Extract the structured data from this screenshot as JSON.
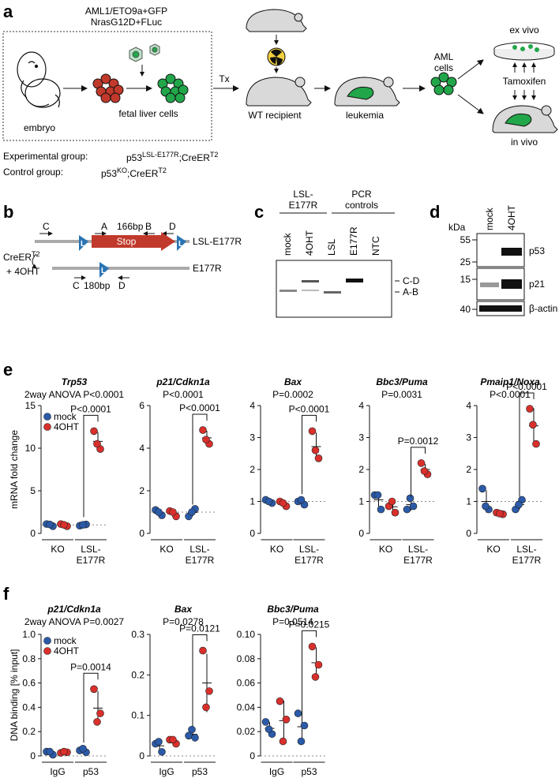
{
  "panel_labels": {
    "a": "a",
    "b": "b",
    "c": "c",
    "d": "d",
    "e": "e",
    "f": "f"
  },
  "panel_a": {
    "construct_line1": "AML1/ETO9a+GFP",
    "construct_line2": "NrasG12D+FLuc",
    "embryo": "embryo",
    "fetal_liver": "fetal liver cells",
    "tx": "Tx",
    "wt_recipient": "WT recipient",
    "leukemia": "leukemia",
    "aml_cells_1": "AML",
    "aml_cells_2": "cells",
    "ex_vivo": "ex vivo",
    "tamoxifen": "Tamoxifen",
    "in_vivo": "in vivo",
    "exp_group_label": "Experimental group:",
    "exp_group_gen_base": "p53",
    "exp_group_gen_sup": "LSL-E177R",
    "exp_group_gen_mid": ";CreER",
    "exp_group_gen_sup2": "T2",
    "ctrl_group_label": "Control group:",
    "ctrl_group_gen_base": "p53",
    "ctrl_group_gen_sup": "KO",
    "ctrl_group_gen_mid": ";CreER",
    "ctrl_group_gen_sup2": "T2"
  },
  "panel_b": {
    "C": "C",
    "A": "A",
    "bp166": "166bp",
    "B": "B",
    "D": "D",
    "L": "L",
    "stop": "Stop",
    "lsl_allele": "LSL-E177R",
    "e177r_allele": "E177R",
    "cre_base": "CreER",
    "cre_sup": "T2",
    "ohtx": "+ 4OHT",
    "C2": "C",
    "bp180": "180bp",
    "D2": "D"
  },
  "panel_c": {
    "group1_line1": "LSL-",
    "group1_line2": "E177R",
    "group2_line1": "PCR",
    "group2_line2": "controls",
    "lanes": [
      "mock",
      "4OHT",
      "LSL",
      "E177R",
      "NTC"
    ],
    "band_cd": "C-D",
    "band_ab": "A-B"
  },
  "panel_d": {
    "kda": "kDa",
    "lanes": [
      "mock",
      "4OHT"
    ],
    "markers": [
      "55",
      "25",
      "15",
      "40"
    ],
    "proteins": [
      "p53",
      "p21",
      "β-actin"
    ]
  },
  "panel_e": {
    "ylabel": "mRNA fold change",
    "legend": [
      "mock",
      "4OHT"
    ],
    "groups": [
      "KO",
      "LSL-",
      "E177R"
    ]
  },
  "panel_f": {
    "ylabel": "DNA binding [% input]",
    "legend": [
      "mock",
      "4OHT"
    ],
    "groups": [
      "IgG",
      "p53"
    ]
  },
  "colors": {
    "mock": "#2b5aa8",
    "oht": "#d9302c",
    "green": "#22a64a",
    "red": "#c0392b",
    "mouse": "#d9d9d9",
    "blue_l": "#2a74b3"
  },
  "chart_data": [
    {
      "type": "scatter",
      "panel": "e",
      "title": "Trp53",
      "subtitle": "2way ANOVA P<0.0001",
      "ylabel": "mRNA fold change",
      "ylim": [
        0,
        15
      ],
      "yticks": [
        0,
        5,
        10,
        15
      ],
      "categories": [
        "KO",
        "LSL-E177R"
      ],
      "series": [
        {
          "name": "mock",
          "values": [
            [
              1.1,
              0.85,
              1.05
            ],
            [
              0.9,
              1.05,
              1.0
            ]
          ]
        },
        {
          "name": "4OHT",
          "values": [
            [
              1.1,
              0.85,
              1.0
            ],
            [
              12.0,
              9.9,
              10.5
            ]
          ]
        }
      ],
      "comparison": "P<0.0001"
    },
    {
      "type": "scatter",
      "panel": "e",
      "title": "p21/Cdkn1a",
      "subtitle": "P<0.0001",
      "ylabel": "",
      "ylim": [
        0,
        6
      ],
      "yticks": [
        0,
        2,
        4,
        6
      ],
      "categories": [
        "KO",
        "LSL-E177R"
      ],
      "series": [
        {
          "name": "mock",
          "values": [
            [
              1.1,
              0.85,
              1.0
            ],
            [
              0.8,
              1.15,
              1.0
            ]
          ]
        },
        {
          "name": "4OHT",
          "values": [
            [
              1.05,
              0.8,
              1.0
            ],
            [
              4.85,
              4.2,
              4.4
            ]
          ]
        }
      ],
      "comparison": "P<0.0001"
    },
    {
      "type": "scatter",
      "panel": "e",
      "title": "Bax",
      "subtitle": "P=0.0002",
      "ylabel": "",
      "ylim": [
        0,
        4
      ],
      "yticks": [
        0,
        1,
        2,
        3,
        4
      ],
      "categories": [
        "KO",
        "LSL-E177R"
      ],
      "series": [
        {
          "name": "mock",
          "values": [
            [
              1.05,
              0.95,
              1.0
            ],
            [
              1.0,
              0.9,
              1.05
            ]
          ]
        },
        {
          "name": "4OHT",
          "values": [
            [
              1.0,
              0.85,
              0.95
            ],
            [
              3.2,
              2.35,
              2.6
            ]
          ]
        }
      ],
      "comparison": "P<0.0001"
    },
    {
      "type": "scatter",
      "panel": "e",
      "title": "Bbc3/Puma",
      "subtitle": "P=0.0031",
      "ylabel": "",
      "ylim": [
        0,
        4
      ],
      "yticks": [
        0,
        1,
        2,
        3,
        4
      ],
      "categories": [
        "KO",
        "LSL-E177R"
      ],
      "series": [
        {
          "name": "mock",
          "values": [
            [
              1.2,
              0.75,
              1.2
            ],
            [
              0.75,
              0.85,
              1.1
            ]
          ]
        },
        {
          "name": "4OHT",
          "values": [
            [
              0.85,
              0.65,
              1.0
            ],
            [
              2.2,
              1.85,
              1.95
            ]
          ]
        }
      ],
      "comparison": "P=0.0012"
    },
    {
      "type": "scatter",
      "panel": "e",
      "title": "Pmaip1/Noxa",
      "subtitle": "P<0.0001",
      "ylabel": "",
      "ylim": [
        0,
        4
      ],
      "yticks": [
        0,
        1,
        2,
        3,
        4
      ],
      "categories": [
        "KO",
        "LSL-E177R"
      ],
      "series": [
        {
          "name": "mock",
          "values": [
            [
              1.4,
              0.75,
              0.85
            ],
            [
              0.75,
              1.05,
              0.9
            ]
          ]
        },
        {
          "name": "4OHT",
          "values": [
            [
              0.65,
              0.6,
              0.62
            ],
            [
              3.9,
              2.8,
              3.4
            ]
          ]
        }
      ],
      "comparison": "P<0.0001"
    },
    {
      "type": "scatter",
      "panel": "f",
      "title": "p21/Cdkn1a",
      "subtitle": "2way ANOVA P=0.0027",
      "ylabel": "DNA binding [% input]",
      "ylim": [
        0,
        1.0
      ],
      "yticks": [
        0,
        0.2,
        0.4,
        0.6,
        0.8,
        1.0
      ],
      "categories": [
        "IgG",
        "p53"
      ],
      "series": [
        {
          "name": "mock",
          "values": [
            [
              0.035,
              0.01,
              0.035
            ],
            [
              0.045,
              0.03,
              0.06
            ]
          ]
        },
        {
          "name": "4OHT",
          "values": [
            [
              0.025,
              0.03,
              0.035
            ],
            [
              0.55,
              0.35,
              0.28
            ]
          ]
        }
      ],
      "comparison": "P=0.0014"
    },
    {
      "type": "scatter",
      "panel": "f",
      "title": "Bax",
      "subtitle": "P=0.0278",
      "ylabel": "",
      "ylim": [
        0,
        0.3
      ],
      "yticks": [
        0,
        0.1,
        0.2,
        0.3
      ],
      "categories": [
        "IgG",
        "p53"
      ],
      "series": [
        {
          "name": "mock",
          "values": [
            [
              0.03,
              0.01,
              0.035
            ],
            [
              0.05,
              0.045,
              0.065
            ]
          ]
        },
        {
          "name": "4OHT",
          "values": [
            [
              0.04,
              0.03,
              0.04
            ],
            [
              0.26,
              0.16,
              0.12
            ]
          ]
        }
      ],
      "comparison": "P=0.0121"
    },
    {
      "type": "scatter",
      "panel": "f",
      "title": "Bbc3/Puma",
      "subtitle": "P=0.0514",
      "ylabel": "",
      "ylim": [
        0,
        0.1
      ],
      "yticks": [
        0,
        0.02,
        0.04,
        0.06,
        0.08,
        0.1
      ],
      "categories": [
        "IgG",
        "p53"
      ],
      "series": [
        {
          "name": "mock",
          "values": [
            [
              0.028,
              0.018,
              0.022
            ],
            [
              0.035,
              0.025,
              0.012
            ]
          ]
        },
        {
          "name": "4OHT",
          "values": [
            [
              0.045,
              0.03,
              0.012
            ],
            [
              0.09,
              0.075,
              0.065
            ]
          ]
        }
      ],
      "comparison": "P=0.0215"
    }
  ]
}
